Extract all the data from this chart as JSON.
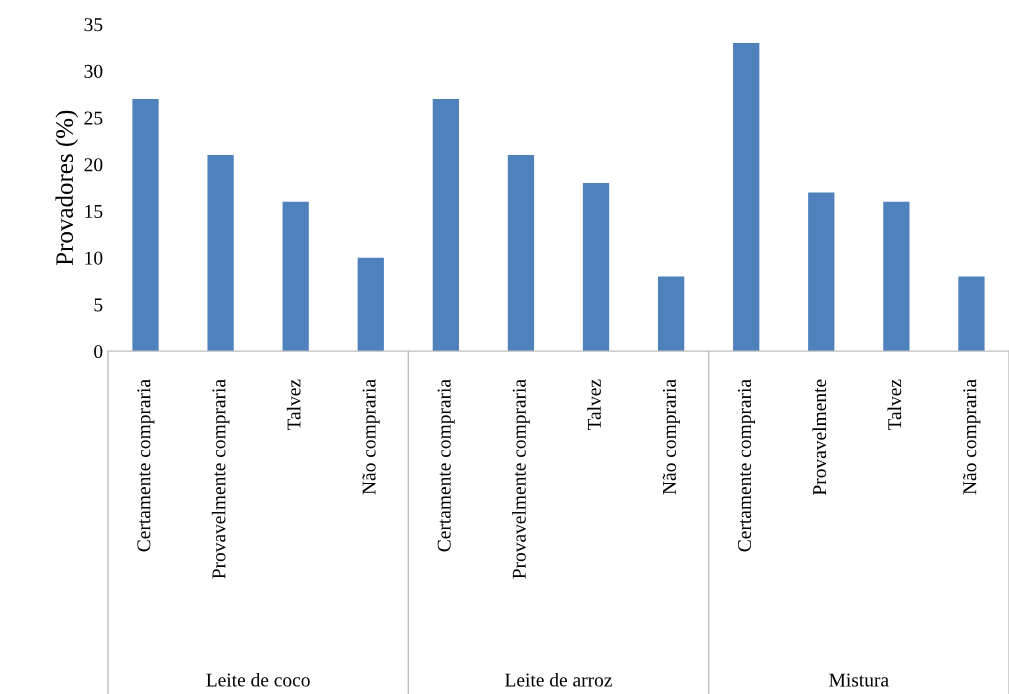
{
  "chart_data": {
    "type": "bar",
    "categories": [
      "Certamente compraria",
      "Provavelmente compraria",
      "Talvez",
      "Não compraria",
      "Certamente compraria",
      "Provavelmente compraria",
      "Talvez",
      "Não compraria",
      "Certamente compraria",
      "Provavelmente",
      "Talvez",
      "Não compraria"
    ],
    "values": [
      27,
      21,
      16,
      10,
      27,
      21,
      18,
      8,
      33,
      17,
      16,
      8
    ],
    "color": "#4f81bd",
    "ylabel": "Provadores (%)",
    "ylim": [
      0,
      35
    ],
    "yticks": [
      0,
      5,
      10,
      15,
      20,
      25,
      30,
      35
    ],
    "annotations": [
      "Leite de coco",
      "Leite de arroz",
      "Mistura"
    ],
    "grid": false,
    "legend": false
  }
}
